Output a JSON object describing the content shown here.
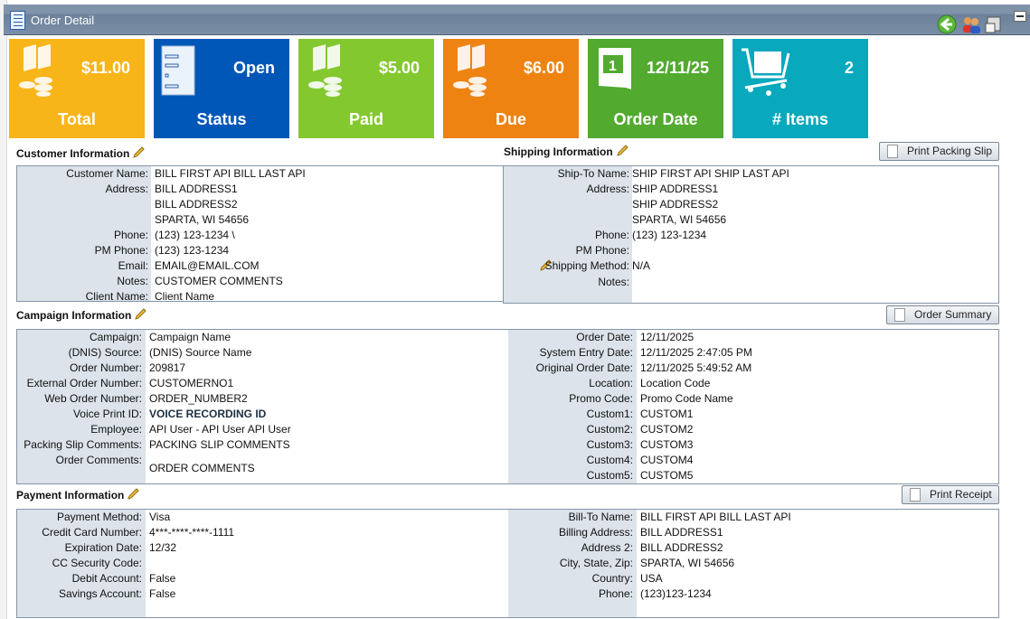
{
  "window": {
    "title": "Order Detail",
    "icons": [
      "back-arrow-icon",
      "users-icon",
      "printer-icon",
      "minimize-icon"
    ]
  },
  "tiles": [
    {
      "value": "$11.00",
      "label": "Total",
      "color": "#f8b519",
      "icon": "money-icon"
    },
    {
      "value": "Open",
      "label": "Status",
      "color": "#0057b8",
      "icon": "form-icon"
    },
    {
      "value": "$5.00",
      "label": "Paid",
      "color": "#84c830",
      "icon": "money-icon"
    },
    {
      "value": "$6.00",
      "label": "Due",
      "color": "#ee8312",
      "icon": "money-icon"
    },
    {
      "value": "12/11/25",
      "label": "Order Date",
      "color": "#52aa2f",
      "icon": "calendar-icon"
    },
    {
      "value": "2",
      "label": "# Items",
      "color": "#08a8bd",
      "icon": "cart-icon"
    }
  ],
  "customer": {
    "heading": "Customer Information",
    "rows": [
      {
        "label": "Customer Name:",
        "value": "BILL FIRST API BILL LAST API"
      },
      {
        "label": "Address:",
        "value": "BILL ADDRESS1"
      },
      {
        "label": "",
        "value": "BILL ADDRESS2"
      },
      {
        "label": "",
        "value": "SPARTA, WI 54656"
      },
      {
        "label": "Phone:",
        "value": "(123) 123-1234 \\"
      },
      {
        "label": "PM Phone:",
        "value": "(123) 123-1234"
      },
      {
        "label": "Email:",
        "value": "EMAIL@EMAIL.COM"
      },
      {
        "label": "Notes:",
        "value": "CUSTOMER COMMENTS"
      },
      {
        "label": "Client Name:",
        "value": "Client Name"
      }
    ]
  },
  "shipping": {
    "heading": "Shipping Information",
    "print_button": "Print Packing Slip",
    "rows": [
      {
        "label": "Ship-To Name:",
        "value": "SHIP FIRST API SHIP LAST API"
      },
      {
        "label": "Address:",
        "value": "SHIP ADDRESS1"
      },
      {
        "label": "",
        "value": "SHIP ADDRESS2"
      },
      {
        "label": "",
        "value": "SPARTA, WI 54656"
      },
      {
        "label": "Phone:",
        "value": "(123) 123-1234"
      },
      {
        "label": "PM Phone:",
        "value": ""
      },
      {
        "label": "Shipping Method:",
        "value": "N/A"
      },
      {
        "label": "Notes:",
        "value": ""
      }
    ]
  },
  "campaign": {
    "heading": "Campaign Information",
    "summary_button": "Order Summary",
    "left": [
      {
        "label": "Campaign:",
        "value": "Campaign Name"
      },
      {
        "label": "(DNIS) Source:",
        "value": "(DNIS) Source Name"
      },
      {
        "label": "Order Number:",
        "value": "209817"
      },
      {
        "label": "External Order Number:",
        "value": "CUSTOMERNO1"
      },
      {
        "label": "Web Order Number:",
        "value": "ORDER_NUMBER2"
      },
      {
        "label": "Voice Print ID:",
        "value": "VOICE RECORDING ID"
      },
      {
        "label": "Employee:",
        "value": "API User - API User API User"
      },
      {
        "label": "Packing Slip Comments:",
        "value": "PACKING SLIP COMMENTS"
      },
      {
        "label": "Order Comments:",
        "value": "ORDER COMMENTS"
      }
    ],
    "right": [
      {
        "label": "Order Date:",
        "value": "12/11/2025"
      },
      {
        "label": "System Entry Date:",
        "value": "12/11/2025 2:47:05 PM"
      },
      {
        "label": "Original Order Date:",
        "value": "12/11/2025 5:49:52 AM"
      },
      {
        "label": "Location:",
        "value": "Location Code"
      },
      {
        "label": "Promo Code:",
        "value": "Promo Code Name"
      },
      {
        "label": "Custom1:",
        "value": "CUSTOM1"
      },
      {
        "label": "Custom2:",
        "value": "CUSTOM2"
      },
      {
        "label": "Custom3:",
        "value": "CUSTOM3"
      },
      {
        "label": "Custom4:",
        "value": "CUSTOM4"
      },
      {
        "label": "Custom5:",
        "value": "CUSTOM5"
      }
    ]
  },
  "payment": {
    "heading": "Payment Information",
    "receipt_button": "Print Receipt",
    "left": [
      {
        "label": "Payment Method:",
        "value": "Visa"
      },
      {
        "label": "Credit Card Number:",
        "value": "4***-****-****-1111"
      },
      {
        "label": "Expiration Date:",
        "value": "12/32"
      },
      {
        "label": "CC Security Code:",
        "value": ""
      },
      {
        "label": "Debit Account:",
        "value": "False"
      },
      {
        "label": "Savings Account:",
        "value": "False"
      }
    ],
    "right": [
      {
        "label": "Bill-To Name:",
        "value": "BILL FIRST API BILL LAST API"
      },
      {
        "label": "Billing Address:",
        "value": "BILL ADDRESS1"
      },
      {
        "label": "Address 2:",
        "value": "BILL ADDRESS2"
      },
      {
        "label": "City, State, Zip:",
        "value": "SPARTA, WI 54656"
      },
      {
        "label": "Country:",
        "value": "USA"
      },
      {
        "label": "Phone:",
        "value": "(123)123-1234"
      }
    ]
  }
}
